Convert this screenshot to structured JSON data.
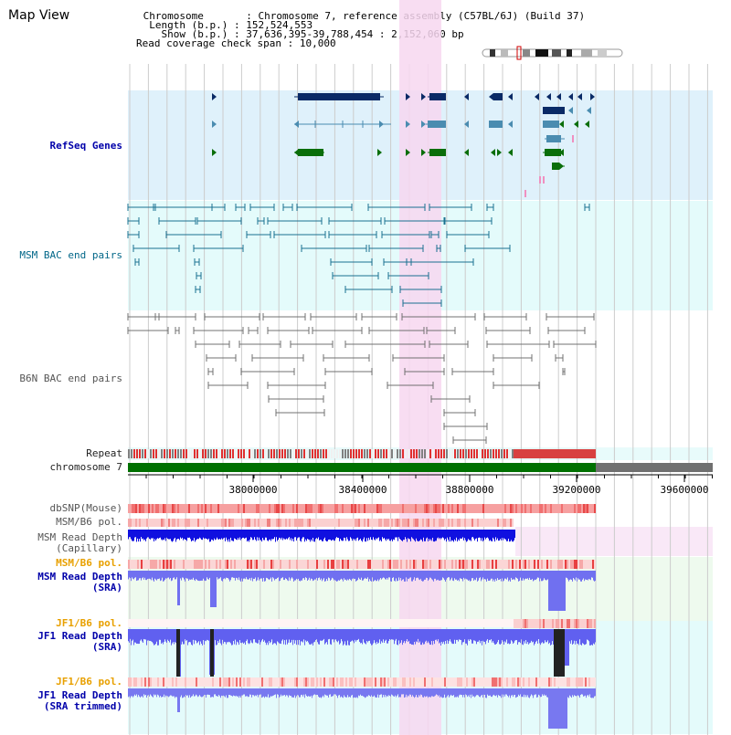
{
  "title": "Map View",
  "info": {
    "chromosome_label": "Chromosome",
    "chromosome_value": "Chromosome 7, reference assembly (C57BL/6J) (Build 37)",
    "length_label": "Length (b.p.)",
    "length_value": "152,524,553",
    "show_label": "Show (b.p.)",
    "show_value": "37,636,395-39,788,454 : 2,152,060 bp",
    "coverage_label": "Read coverage check span",
    "coverage_value": "10,000"
  },
  "tracks": {
    "refseq": "RefSeq Genes",
    "msm_bac": "MSM BAC end pairs",
    "b6n_bac": "B6N BAC end pairs",
    "repeat": "Repeat",
    "chromosome": "chromosome 7",
    "dbsnp": "dbSNP(Mouse)",
    "msm_b6_pol_1": "MSM/B6 pol.",
    "msm_depth_cap": "MSM Read Depth\n(Capillary)",
    "msm_b6_pol_2": "MSM/B6 pol.",
    "msm_depth_sra": "MSM Read Depth\n(SRA)",
    "jf1_b6_pol_1": "JF1/B6 pol.",
    "jf1_depth_sra": "JF1 Read Depth\n(SRA)",
    "jf1_b6_pol_2": "JF1/B6 pol.",
    "jf1_depth_trim": "JF1 Read Depth\n(SRA trimmed)"
  },
  "axis_ticks": [
    "38000000",
    "38400000",
    "38800000",
    "39200000",
    "39600000"
  ],
  "colors": {
    "gene_navy": "#0a2a66",
    "gene_teal": "#4a8cb0",
    "gene_green": "#0a6e0a",
    "highlight": "#f7d7f0",
    "chrom_green": "#007000"
  }
}
